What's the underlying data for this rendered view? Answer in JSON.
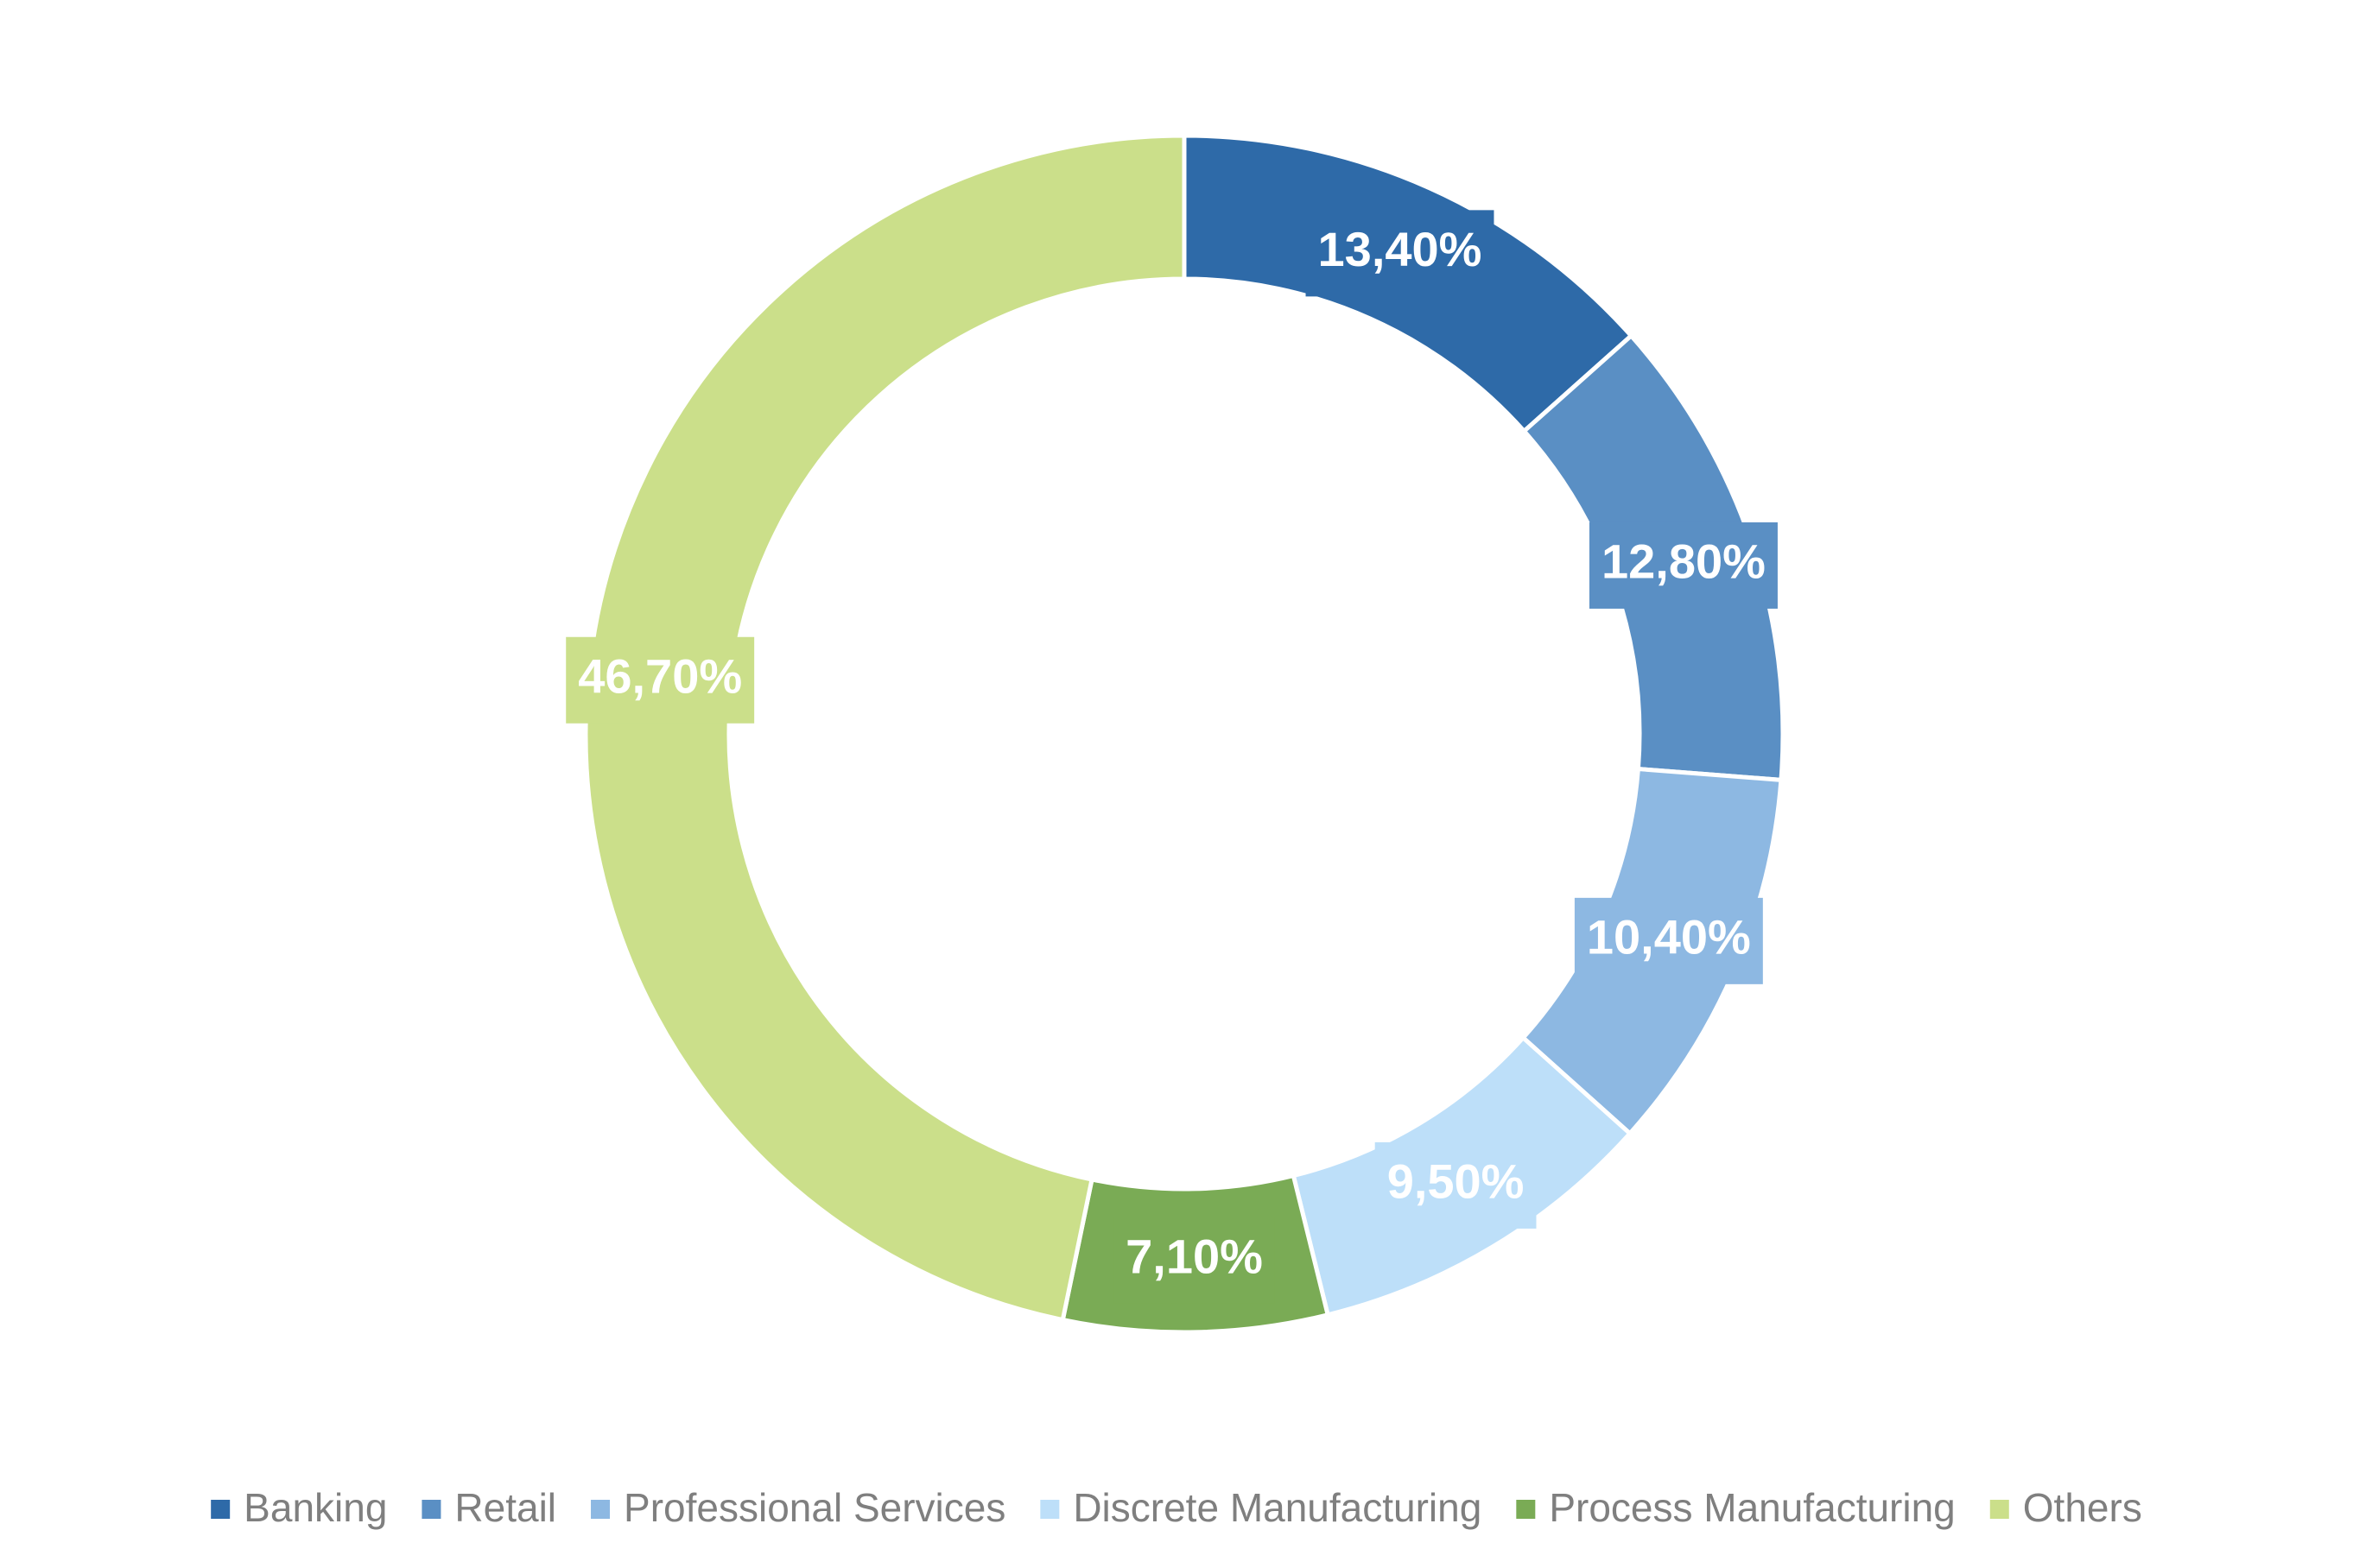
{
  "chart_data": {
    "type": "donut",
    "categories": [
      "Banking",
      "Retail",
      "Professional Services",
      "Discrete Manufacturing",
      "Process Manufacturing",
      "Others"
    ],
    "values": [
      13.4,
      12.8,
      10.4,
      9.5,
      7.1,
      46.7
    ],
    "value_labels": [
      "13,40%",
      "12,80%",
      "10,40%",
      "9,50%",
      "7,10%",
      "46,70%"
    ],
    "colors": [
      "#2e6aa8",
      "#5a8fc4",
      "#8db8e2",
      "#bddff9",
      "#7aab55",
      "#cbdf8a"
    ],
    "legend": "bottom"
  }
}
